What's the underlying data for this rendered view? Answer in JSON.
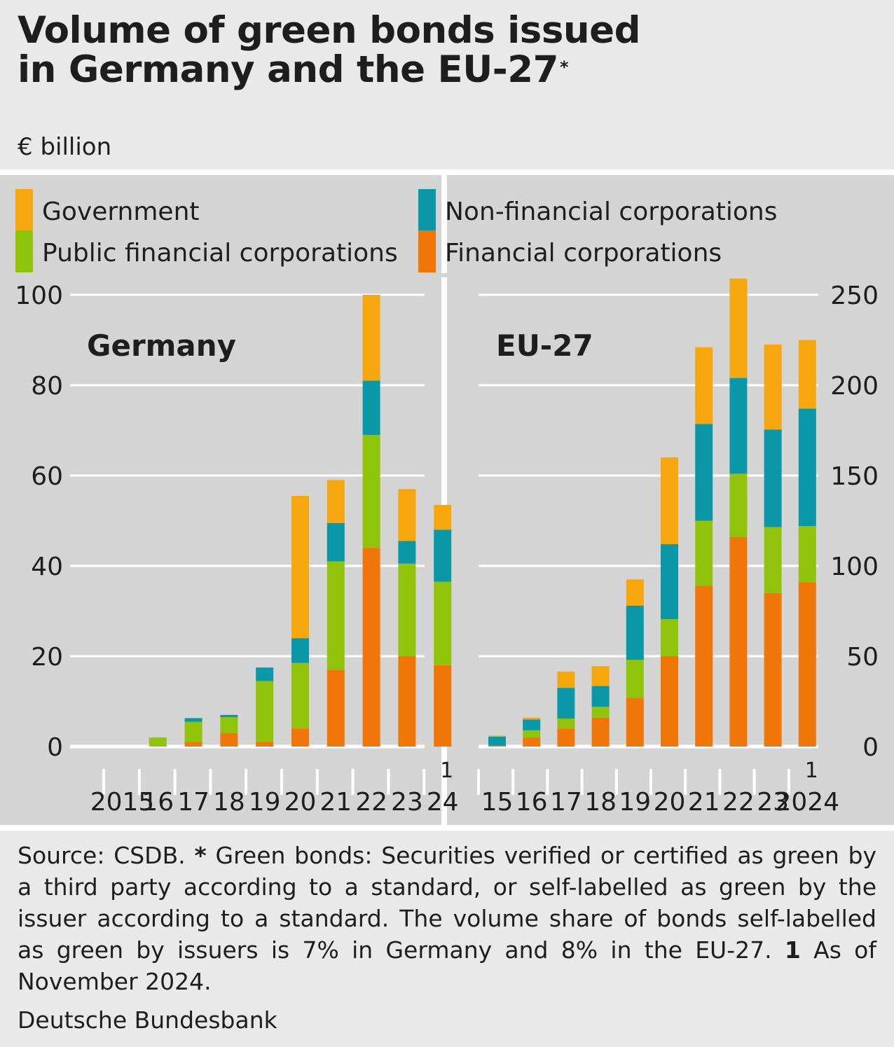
{
  "title": {
    "line1": "Volume of green bonds issued",
    "line2": "in Germany and the EU-27",
    "marker": "*"
  },
  "unit": "€ billion",
  "legend": [
    {
      "label": "Government",
      "color": "#f5a70d"
    },
    {
      "label": "Non-financial corporations",
      "color": "#0a98a8"
    },
    {
      "label": "Public financial corporations",
      "color": "#8fc40b"
    },
    {
      "label": "Financial corporations",
      "color": "#f07707"
    }
  ],
  "chart_data": [
    {
      "type": "bar",
      "stacked": true,
      "title": "Germany",
      "categories": [
        "2015",
        "16",
        "17",
        "18",
        "19",
        "20",
        "21",
        "22",
        "23",
        "24"
      ],
      "footnote_category": "24",
      "footnote_marker": "1",
      "ylim": [
        0,
        100
      ],
      "yticks": [
        0,
        20,
        40,
        60,
        80,
        100
      ],
      "grid": true,
      "series": [
        {
          "name": "Financial corporations",
          "values": [
            0,
            0,
            1,
            3,
            1,
            4,
            17,
            44,
            20,
            18
          ]
        },
        {
          "name": "Public financial corporations",
          "values": [
            0,
            2,
            4.5,
            3.5,
            13.5,
            14.5,
            24,
            25,
            20.5,
            18.5
          ]
        },
        {
          "name": "Non-financial corporations",
          "values": [
            0,
            0,
            0.8,
            0.5,
            3,
            5.5,
            8.5,
            12,
            5,
            11.5
          ]
        },
        {
          "name": "Government",
          "values": [
            0,
            0,
            0,
            0,
            0,
            31.5,
            9.5,
            19,
            11.5,
            5.5
          ]
        }
      ]
    },
    {
      "type": "bar",
      "stacked": true,
      "title": "EU-27",
      "categories": [
        "15",
        "16",
        "17",
        "18",
        "19",
        "20",
        "21",
        "22",
        "23",
        "2024"
      ],
      "footnote_category": "2024",
      "footnote_marker": "1",
      "ylim": [
        0,
        250
      ],
      "yticks": [
        0,
        50,
        100,
        150,
        200,
        250
      ],
      "grid": true,
      "series": [
        {
          "name": "Financial corporations",
          "values": [
            0.5,
            5,
            10,
            16,
            27,
            50,
            89,
            116,
            85,
            91
          ]
        },
        {
          "name": "Public financial corporations",
          "values": [
            0,
            4,
            5.5,
            6,
            21,
            20.5,
            36,
            35,
            36.5,
            31
          ]
        },
        {
          "name": "Non-financial corporations",
          "values": [
            5,
            6,
            17,
            11.5,
            30,
            41.5,
            53.5,
            53,
            54,
            65
          ]
        },
        {
          "name": "Government",
          "values": [
            0.5,
            1,
            9,
            11,
            14.5,
            48,
            42.5,
            55,
            47,
            38
          ]
        }
      ]
    }
  ],
  "footnote": {
    "source": "Source: CSDB.",
    "star": "*",
    "text1": "Green bonds: Securities verified or certified as green by a third party according to a standard, or self-labelled as green by the issuer according to a standard. The volume share of bonds self-labelled as green by issuers is 7% in Germany and 8% in the EU-27.",
    "one": "1",
    "text2": "As of November 2024."
  },
  "credit": "Deutsche Bundesbank"
}
